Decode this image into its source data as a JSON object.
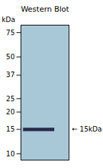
{
  "chart_data": {
    "type": "gel",
    "title": "Western Blot",
    "ylabel": "kDa",
    "log": "y",
    "ylim": [
      9,
      85
    ],
    "yticks": [
      10,
      15,
      20,
      25,
      37,
      50,
      75
    ],
    "values": [
      15
    ],
    "colors": [
      "#a8c8d8",
      "#2a2a4a"
    ],
    "annotations": [
      {
        "text": "← 15kDa",
        "y": 15
      }
    ]
  }
}
